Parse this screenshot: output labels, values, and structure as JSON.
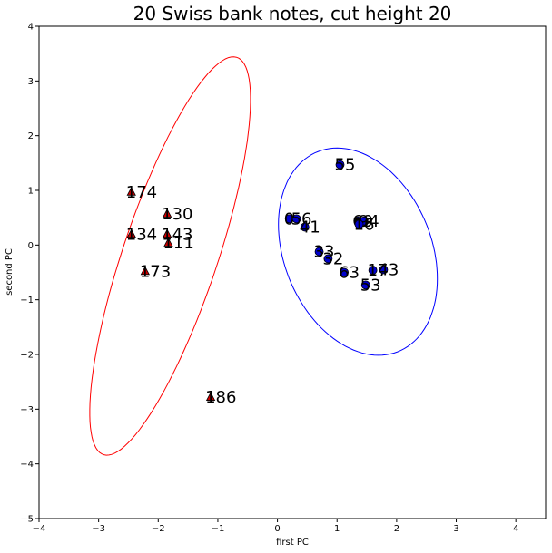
{
  "chart_data": {
    "type": "scatter",
    "title": "20 Swiss bank notes, cut height 20",
    "xlabel": "first PC",
    "ylabel": "second PC",
    "xlim": [
      -4,
      4.5
    ],
    "ylim": [
      -5,
      4
    ],
    "xticks": [
      -4,
      -3,
      -2,
      -1,
      0,
      1,
      2,
      3,
      4
    ],
    "yticks": [
      -5,
      -4,
      -3,
      -2,
      -1,
      0,
      1,
      2,
      3,
      4
    ],
    "grid": false,
    "colors": {
      "cluster1": "#ff0000",
      "cluster2": "#0000ff",
      "points_blue": "#0000cc",
      "points_red": "#cc0000"
    },
    "series": [
      {
        "marker": "triangle",
        "points": [
          {
            "label": "174",
            "x": -2.45,
            "y": 0.97
          },
          {
            "label": "130",
            "x": -1.85,
            "y": 0.57
          },
          {
            "label": "134",
            "x": -2.45,
            "y": 0.2
          },
          {
            "label": "143",
            "x": -1.85,
            "y": 0.2
          },
          {
            "label": "111",
            "x": -1.83,
            "y": 0.04
          },
          {
            "label": "173",
            "x": -2.22,
            "y": -0.48
          },
          {
            "label": "186",
            "x": -1.12,
            "y": -2.78
          }
        ],
        "ellipse": {
          "center": [
            -1.8,
            -0.2
          ],
          "semi_axes": [
            0.8,
            3.8
          ],
          "angle_deg": -17
        }
      },
      {
        "marker": "circle",
        "points": [
          {
            "label": "55",
            "x": 1.05,
            "y": 1.47
          },
          {
            "label": "0",
            "x": 0.2,
            "y": 0.48
          },
          {
            "label": "56",
            "x": 0.32,
            "y": 0.48
          },
          {
            "label": "41",
            "x": 0.46,
            "y": 0.33
          },
          {
            "label": "69",
            "x": 1.35,
            "y": 0.44
          },
          {
            "label": "94",
            "x": 1.45,
            "y": 0.44
          },
          {
            "label": "16",
            "x": 1.37,
            "y": 0.38
          },
          {
            "label": "33",
            "x": 0.7,
            "y": -0.12
          },
          {
            "label": "32",
            "x": 0.85,
            "y": -0.25
          },
          {
            "label": "63",
            "x": 1.12,
            "y": -0.5
          },
          {
            "label": "17",
            "x": 1.6,
            "y": -0.46
          },
          {
            "label": "43",
            "x": 1.78,
            "y": -0.45
          },
          {
            "label": "53",
            "x": 1.48,
            "y": -0.73
          }
        ],
        "ellipse": {
          "center": [
            1.35,
            -0.12
          ],
          "semi_axes": [
            1.25,
            1.95
          ],
          "angle_deg": 18
        }
      }
    ]
  }
}
